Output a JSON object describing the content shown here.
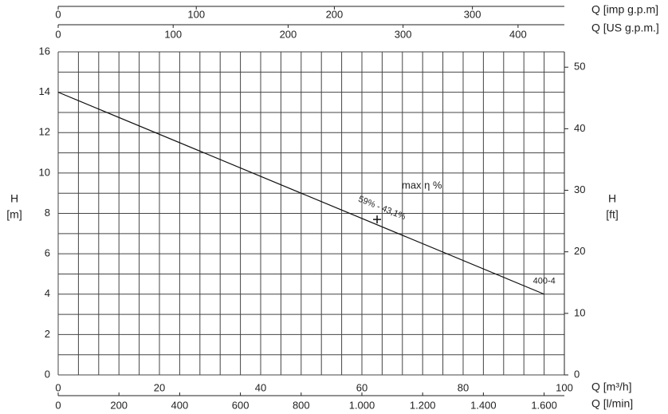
{
  "chart_data": {
    "type": "line",
    "ylabel": [
      "H",
      "[m]"
    ],
    "y2label": [
      "H",
      "[ft]"
    ],
    "ylim": [
      0,
      16
    ],
    "yticks": [
      0,
      2,
      4,
      6,
      8,
      10,
      12,
      14,
      16
    ],
    "y2lim": [
      0,
      52.49
    ],
    "y2ticks": [
      0,
      10,
      20,
      30,
      40,
      50
    ],
    "xlim": [
      0,
      100
    ],
    "xticks": [
      0,
      20,
      40,
      60,
      80,
      100
    ],
    "xlabel": "Q [m³/h]",
    "xgrid": [
      0,
      4,
      8,
      12,
      16,
      20,
      24,
      28,
      32,
      36,
      40,
      44,
      48,
      52,
      56,
      60,
      64,
      68,
      72,
      76,
      80,
      84,
      88,
      92,
      96,
      100
    ],
    "ygrid": [
      0,
      1,
      2,
      3,
      4,
      5,
      6,
      7,
      8,
      9,
      10,
      11,
      12,
      13,
      14,
      15,
      16
    ],
    "extra_x_axes": [
      {
        "label": "Q [imp g.p.m]",
        "lim": [
          0,
          366.6
        ],
        "ticks": [
          0,
          100,
          200,
          300
        ]
      },
      {
        "label": "Q [US g.p.m.]",
        "lim": [
          0,
          440.3
        ],
        "ticks": [
          0,
          100,
          200,
          300,
          400
        ]
      },
      {
        "label": "Q [l/min]",
        "lim": [
          0,
          1666.7
        ],
        "ticks": [
          0,
          200,
          400,
          600,
          800,
          {
            "value": 1000,
            "label": "1.000"
          },
          {
            "value": 1200,
            "label": "1.200"
          },
          {
            "value": 1400,
            "label": "1.400"
          },
          {
            "value": 1600,
            "label": "1.600"
          }
        ]
      }
    ],
    "series": [
      {
        "name": "400-4",
        "color": "#111",
        "x": [
          0,
          96
        ],
        "values": [
          14,
          4
        ]
      }
    ],
    "points": [
      {
        "label": "59% - 43,1%",
        "x": 63,
        "y": 7.7
      }
    ],
    "annotation": "max η %"
  }
}
